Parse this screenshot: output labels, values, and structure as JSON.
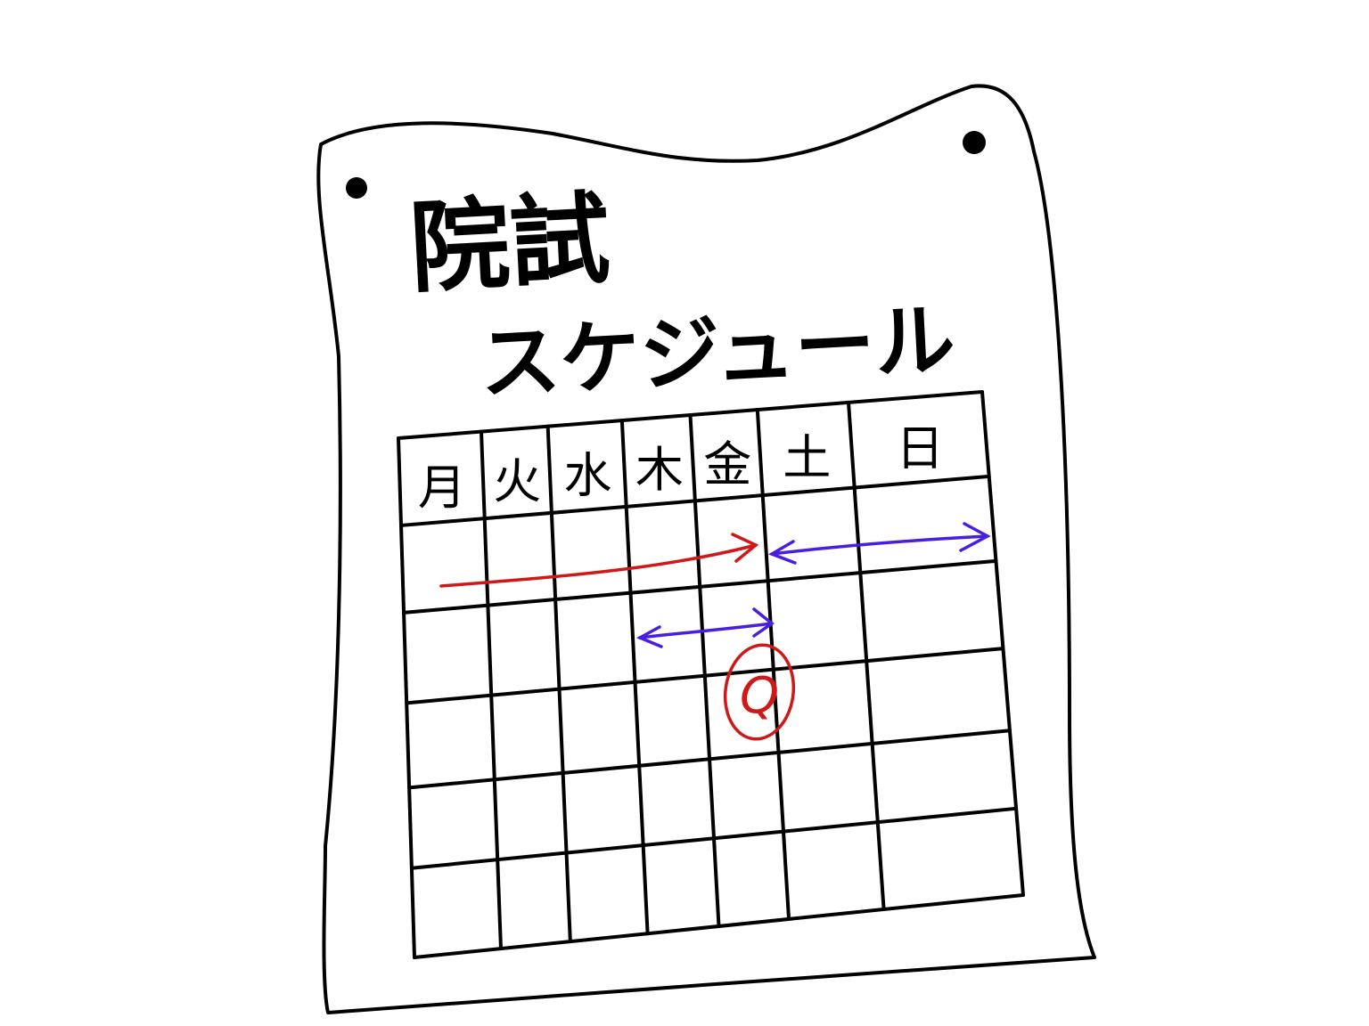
{
  "poster": {
    "title_line1": "院試",
    "title_line2": "スケジュール"
  },
  "calendar": {
    "weekdays": [
      "月",
      "火",
      "水",
      "木",
      "金",
      "土",
      "日"
    ],
    "week_rows": 5,
    "circled_mark": "Q"
  },
  "colors": {
    "ink": "#000000",
    "red_marker": "#d01818",
    "blue_marker": "#4a1ee0"
  },
  "icons": [
    "pin-dot-icon",
    "arrow-icon",
    "double-arrow-icon",
    "circle-mark-icon"
  ]
}
